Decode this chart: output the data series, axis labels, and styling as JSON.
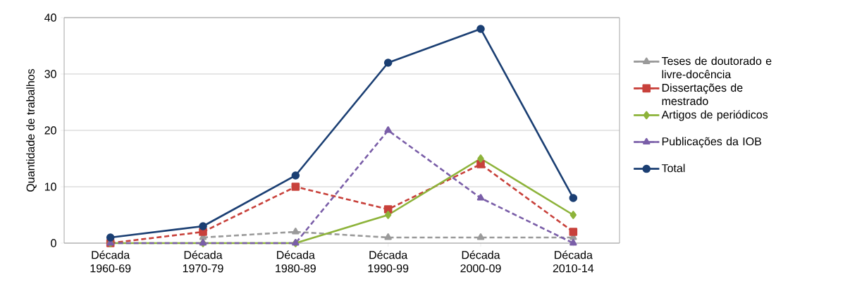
{
  "chart_data": {
    "type": "line",
    "ylabel": "Quantidade de trabalhos",
    "categories": [
      "Década 1960-69",
      "Década 1970-79",
      "Década 1980-89",
      "Década 1990-99",
      "Década 2000-09",
      "Década 2010-14"
    ],
    "series": [
      {
        "name": "Teses de doutorado e livre-docência",
        "color": "#9a9a9a",
        "marker": "triangle",
        "line_style": "dashed",
        "values": [
          null,
          1,
          2,
          1,
          1,
          1
        ]
      },
      {
        "name": "Dissertações de mestrado",
        "color": "#c8413b",
        "marker": "square",
        "line_style": "dashed",
        "values": [
          0,
          2,
          10,
          6,
          14,
          2
        ]
      },
      {
        "name": "Artigos de periódicos",
        "color": "#8db33a",
        "marker": "diamond",
        "line_style": "solid",
        "values": [
          0,
          0,
          0,
          5,
          15,
          5
        ]
      },
      {
        "name": "Publicações da IOB",
        "color": "#7a5ea8",
        "marker": "triangle",
        "line_style": "dashed",
        "values": [
          0,
          0,
          0,
          20,
          8,
          0
        ]
      },
      {
        "name": "Total",
        "color": "#1b3f73",
        "marker": "circle",
        "line_style": "solid",
        "values": [
          1,
          3,
          12,
          32,
          38,
          8
        ]
      }
    ],
    "ylim": [
      0,
      40
    ],
    "yticks": [
      0,
      10,
      20,
      30,
      40
    ],
    "grid": "y",
    "legend": "right"
  }
}
